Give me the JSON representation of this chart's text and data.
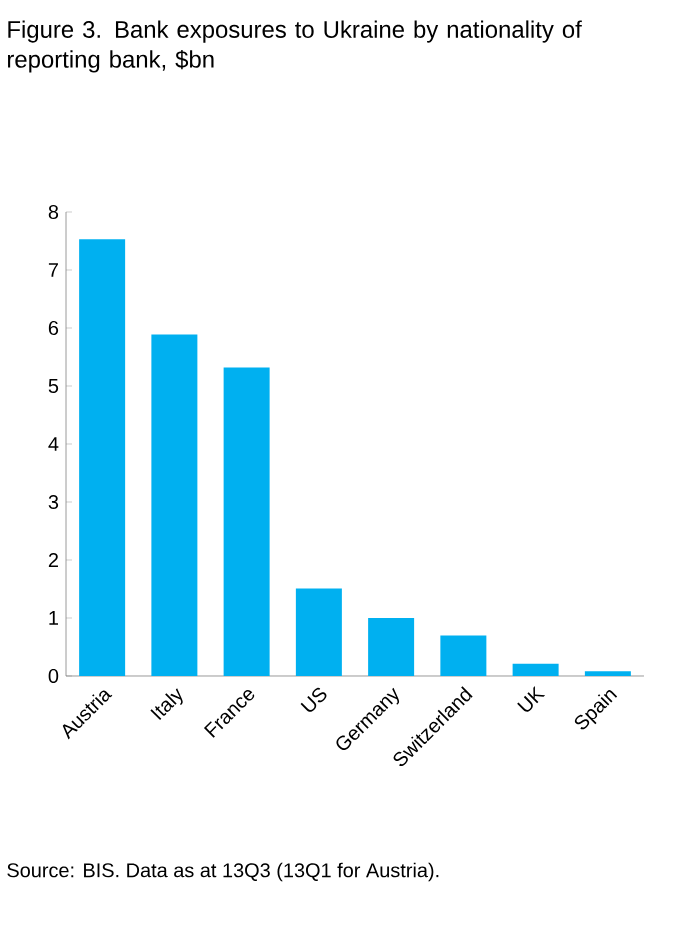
{
  "chart_data": {
    "type": "bar",
    "title": "Figure 3. Bank exposures to Ukraine by nationality of reporting bank, $bn",
    "categories": [
      "Austria",
      "Italy",
      "France",
      "US",
      "Germany",
      "Switzerland",
      "UK",
      "Spain"
    ],
    "values": [
      7.53,
      5.89,
      5.32,
      1.51,
      1.0,
      0.7,
      0.21,
      0.08
    ],
    "color": "#00b0f0",
    "ylim": [
      0,
      8
    ],
    "yticks": [
      0,
      1,
      2,
      3,
      4,
      5,
      6,
      7,
      8
    ],
    "annotations": [
      "Source: BIS. Data as at 13Q3 (13Q1 for Austria)."
    ]
  }
}
